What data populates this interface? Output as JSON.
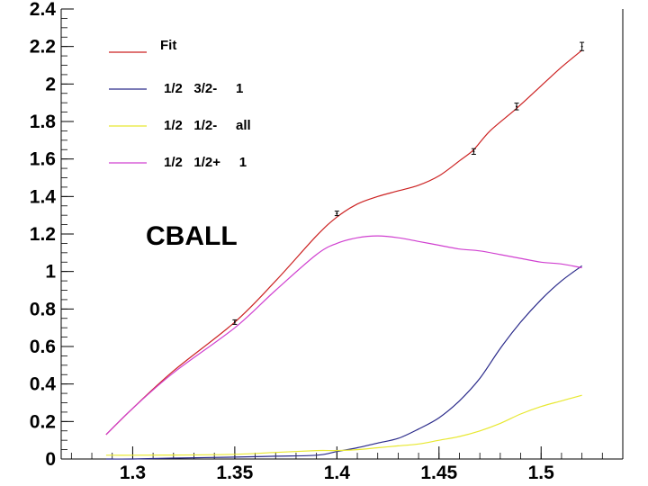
{
  "chart_data": {
    "type": "line",
    "title": "",
    "xlabel": "",
    "ylabel": "",
    "xlim": [
      1.265,
      1.54
    ],
    "ylim": [
      0,
      2.4
    ],
    "x_ticks": [
      1.3,
      1.35,
      1.4,
      1.45,
      1.5
    ],
    "x_tick_labels": [
      "1.3",
      "1.35",
      "1.4",
      "1.45",
      "1.5"
    ],
    "y_ticks": [
      0,
      0.2,
      0.4,
      0.6,
      0.8,
      1,
      1.2,
      1.4,
      1.6,
      1.8,
      2,
      2.2,
      2.4
    ],
    "y_tick_labels": [
      "0",
      "0.2",
      "0.4",
      "0.6",
      "0.8",
      "1",
      "1.2",
      "1.4",
      "1.6",
      "1.8",
      "2",
      "2.2",
      "2.4"
    ],
    "grid": false,
    "legend_position": "top-left",
    "annotation": "CBALL",
    "series": [
      {
        "name": "Fit",
        "color": "#cc2222",
        "x": [
          1.287,
          1.3,
          1.32,
          1.35,
          1.37,
          1.39,
          1.4,
          1.41,
          1.42,
          1.43,
          1.44,
          1.45,
          1.46,
          1.467,
          1.475,
          1.488,
          1.5,
          1.51,
          1.52
        ],
        "y": [
          0.13,
          0.27,
          0.47,
          0.73,
          0.95,
          1.19,
          1.29,
          1.36,
          1.4,
          1.43,
          1.46,
          1.51,
          1.59,
          1.65,
          1.75,
          1.87,
          1.99,
          2.09,
          2.18
        ]
      },
      {
        "name": "1/2   3/2-     1",
        "color": "#2a2a8a",
        "x": [
          1.287,
          1.3,
          1.32,
          1.35,
          1.37,
          1.39,
          1.4,
          1.41,
          1.42,
          1.43,
          1.44,
          1.45,
          1.46,
          1.47,
          1.48,
          1.49,
          1.5,
          1.51,
          1.52
        ],
        "y": [
          0.0,
          0.0,
          0.005,
          0.01,
          0.015,
          0.02,
          0.04,
          0.06,
          0.085,
          0.11,
          0.16,
          0.22,
          0.31,
          0.43,
          0.59,
          0.73,
          0.85,
          0.95,
          1.03
        ]
      },
      {
        "name": "1/2   1/2-     all",
        "color": "#e8e830",
        "x": [
          1.287,
          1.3,
          1.32,
          1.35,
          1.37,
          1.39,
          1.4,
          1.41,
          1.42,
          1.43,
          1.44,
          1.45,
          1.46,
          1.47,
          1.48,
          1.49,
          1.5,
          1.51,
          1.52
        ],
        "y": [
          0.02,
          0.02,
          0.021,
          0.025,
          0.035,
          0.045,
          0.045,
          0.05,
          0.06,
          0.07,
          0.08,
          0.1,
          0.12,
          0.15,
          0.19,
          0.24,
          0.28,
          0.31,
          0.34
        ]
      },
      {
        "name": "1/2   1/2+     1",
        "color": "#d040d0",
        "x": [
          1.287,
          1.3,
          1.32,
          1.35,
          1.37,
          1.39,
          1.4,
          1.41,
          1.42,
          1.43,
          1.44,
          1.45,
          1.46,
          1.47,
          1.48,
          1.49,
          1.5,
          1.51,
          1.52
        ],
        "y": [
          0.13,
          0.27,
          0.46,
          0.7,
          0.9,
          1.09,
          1.15,
          1.18,
          1.19,
          1.18,
          1.16,
          1.14,
          1.12,
          1.11,
          1.09,
          1.07,
          1.05,
          1.04,
          1.02
        ]
      }
    ],
    "error_points": {
      "series": "Fit",
      "x": [
        1.35,
        1.4,
        1.467,
        1.488,
        1.52
      ],
      "y": [
        0.73,
        1.31,
        1.64,
        1.88,
        2.2
      ],
      "err": [
        0.012,
        0.012,
        0.015,
        0.018,
        0.022
      ]
    }
  }
}
